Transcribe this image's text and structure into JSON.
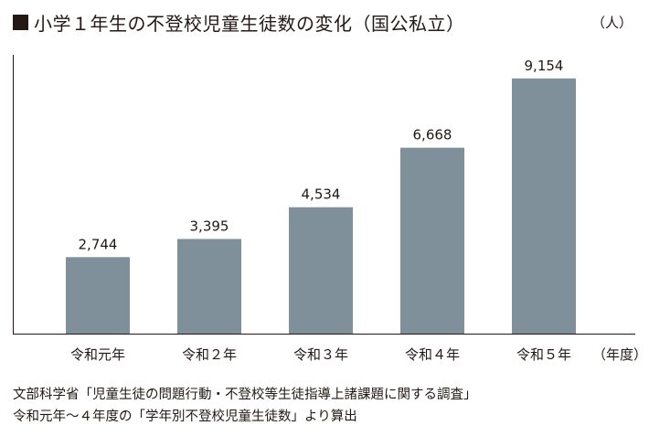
{
  "header": {
    "title": "小学１年生の不登校児童生徒数の変化（国公私立）",
    "unit": "（人）"
  },
  "chart_data": {
    "type": "bar",
    "title": "小学１年生の不登校児童生徒数の変化（国公私立）",
    "categories": [
      "令和元年",
      "令和２年",
      "令和３年",
      "令和４年",
      "令和５年"
    ],
    "values": [
      2744,
      3395,
      4534,
      6668,
      9154
    ],
    "value_labels": [
      "2,744",
      "3,395",
      "4,534",
      "6,668",
      "9,154"
    ],
    "ylabel": "（人）",
    "xlabel": "（年度）",
    "ylim": [
      0,
      10000
    ],
    "grid": false,
    "bar_color": "#7f909a"
  },
  "footer": {
    "source_line1": "文部科学省「児童生徒の問題行動・不登校等生徒指導上諸課題に関する調査」",
    "source_line2": "令和元年～４年度の「学年別不登校児童生徒数」より算出"
  }
}
